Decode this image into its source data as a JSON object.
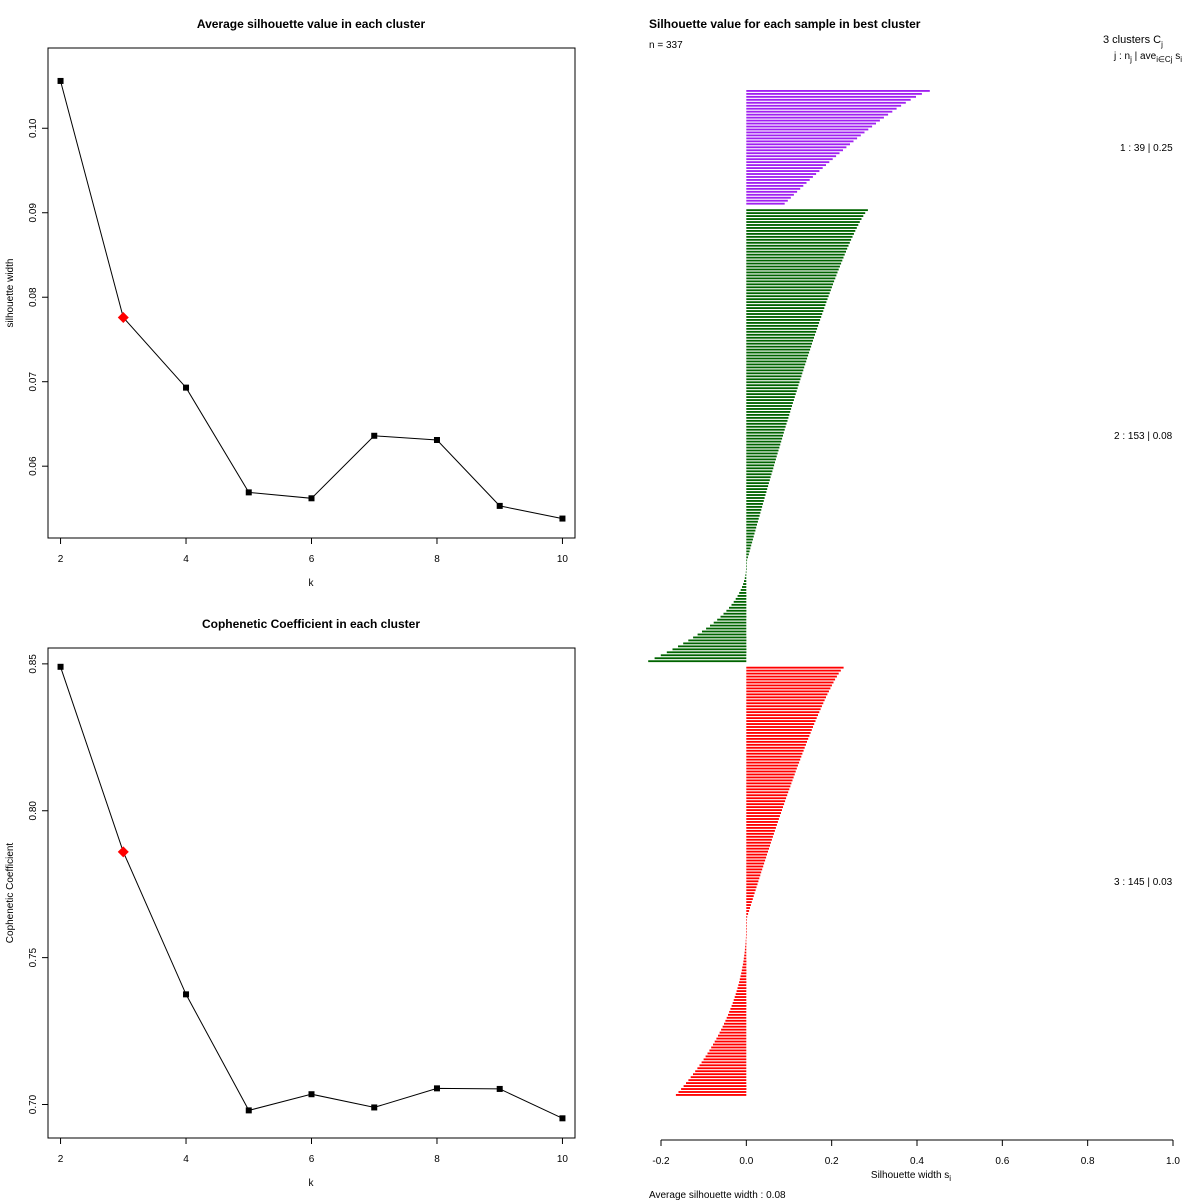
{
  "chart_data": [
    {
      "id": "avg_silhouette",
      "type": "line",
      "title": "Average silhouette value in each cluster",
      "xlabel": "k",
      "ylabel": "silhouette width",
      "x": [
        2,
        3,
        4,
        5,
        6,
        7,
        8,
        9,
        10
      ],
      "values": [
        0.1056,
        0.0776,
        0.0693,
        0.0569,
        0.0562,
        0.0636,
        0.0631,
        0.0553,
        0.0538
      ],
      "highlight_index": 1,
      "highlight_color": "#ff0000",
      "xlim": [
        1.8,
        10.2
      ],
      "ylim": [
        0.0515,
        0.1095
      ],
      "xticks": [
        2,
        4,
        6,
        8,
        10
      ],
      "xtick_labels": [
        "2",
        "4",
        "6",
        "8",
        "10"
      ],
      "yticks": [
        0.06,
        0.07,
        0.08,
        0.09,
        0.1
      ],
      "ytick_labels": [
        "0.06",
        "0.07",
        "0.08",
        "0.09",
        "0.10"
      ]
    },
    {
      "id": "cophenetic",
      "type": "line",
      "title": "Cophenetic Coefficient in each cluster",
      "xlabel": "k",
      "ylabel": "Cophenetic Coefficient",
      "x": [
        2,
        3,
        4,
        5,
        6,
        7,
        8,
        9,
        10
      ],
      "values": [
        0.849,
        0.786,
        0.7375,
        0.698,
        0.7035,
        0.699,
        0.7055,
        0.7053,
        0.6953
      ],
      "highlight_index": 1,
      "highlight_color": "#ff0000",
      "xlim": [
        1.8,
        10.2
      ],
      "ylim": [
        0.6886,
        0.8554
      ],
      "xticks": [
        2,
        4,
        6,
        8,
        10
      ],
      "xtick_labels": [
        "2",
        "4",
        "6",
        "8",
        "10"
      ],
      "yticks": [
        0.7,
        0.75,
        0.8,
        0.85
      ],
      "ytick_labels": [
        "0.70",
        "0.75",
        "0.80",
        "0.85"
      ]
    },
    {
      "id": "silhouette_samples",
      "type": "bar",
      "orientation": "horizontal",
      "title": "Silhouette value for each sample in best cluster",
      "n_label": "n = 337",
      "xlabel": "Silhouette width s",
      "xlabel_sub": "i",
      "xlim": [
        -0.2,
        1.0
      ],
      "xticks": [
        -0.2,
        0.0,
        0.2,
        0.4,
        0.6,
        0.8,
        1.0
      ],
      "xtick_labels": [
        "-0.2",
        "0.0",
        "0.2",
        "0.4",
        "0.6",
        "0.8",
        "1.0"
      ],
      "footer": "Average silhouette width :  0.08",
      "legend_header": "3  clusters  C",
      "legend_header_sub": "j",
      "legend_subheader": "j :  n",
      "legend_subheader_sub": "j",
      "legend_subheader_rest": " | ave",
      "legend_subheader_sub2": "i∈Cj",
      "legend_subheader_end": " s",
      "legend_subheader_sub3": "i",
      "clusters": [
        {
          "id": 1,
          "n": 39,
          "avg": 0.25,
          "label": "1 :   39  |  0.25",
          "color": "#a020f0",
          "max": 0.43,
          "min": 0.09,
          "neg_count": 0,
          "neg_min": 0
        },
        {
          "id": 2,
          "n": 153,
          "avg": 0.08,
          "label": "2 :   153  |  0.08",
          "color": "#006400",
          "max": 0.285,
          "min": 0.0,
          "neg_count": 33,
          "neg_min": -0.23
        },
        {
          "id": 3,
          "n": 145,
          "avg": 0.03,
          "label": "3 :   145  |  0.03",
          "color": "#ff0000",
          "max": 0.228,
          "min": 0.0,
          "neg_count": 59,
          "neg_min": -0.165
        }
      ]
    }
  ]
}
